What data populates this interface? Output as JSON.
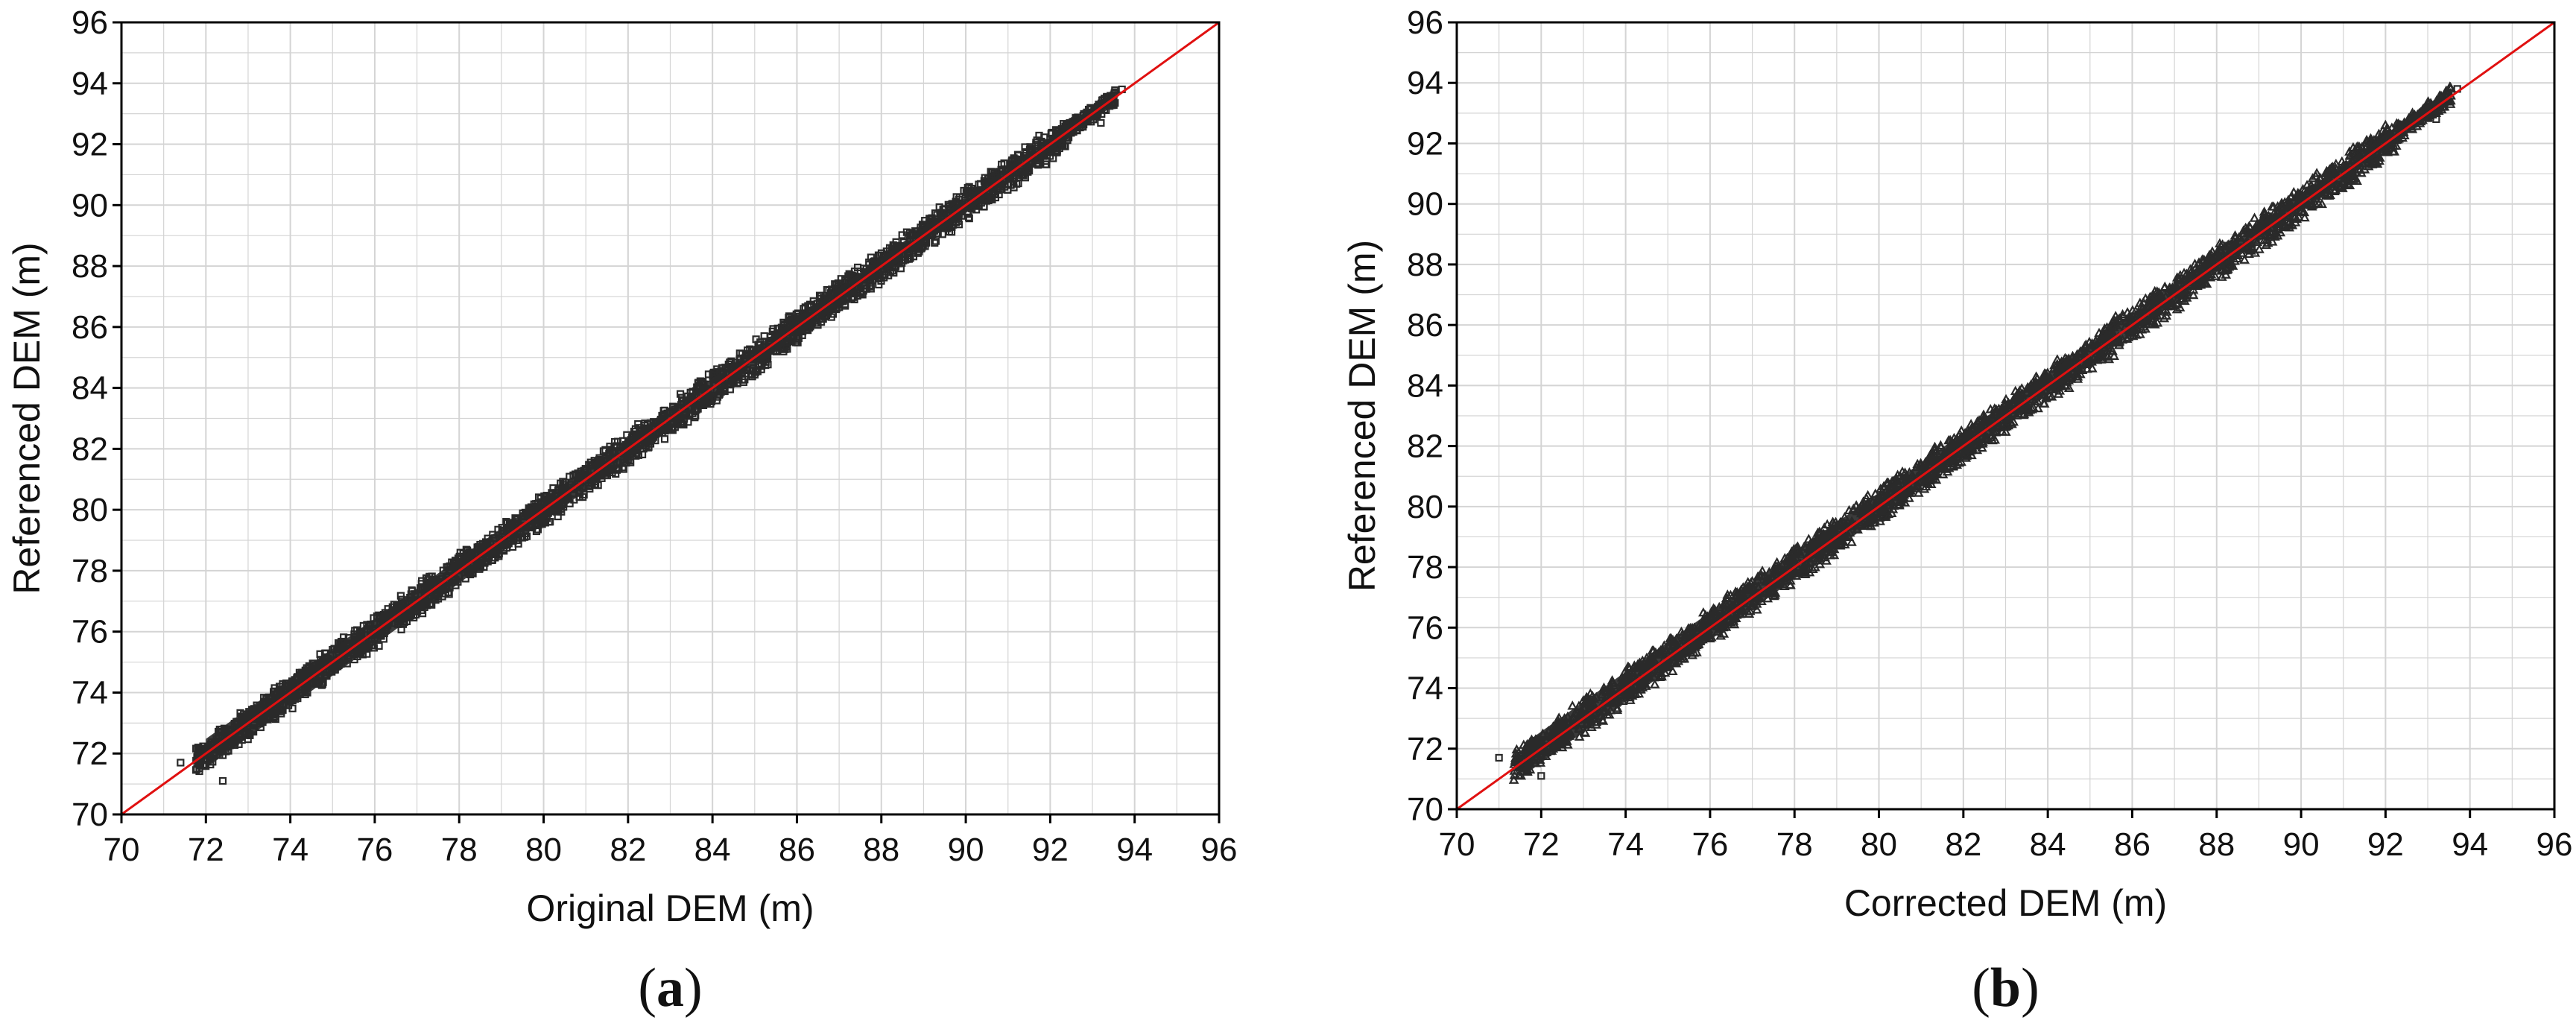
{
  "colors": {
    "points": "#2a2a2a",
    "fit_line": "#e01010",
    "grid": "#d4d4d4",
    "frame": "#000000"
  },
  "chart_data": [
    {
      "type": "scatter",
      "panel_label": "a",
      "xlabel": "Original DEM (m)",
      "ylabel": "Referenced DEM (m)",
      "xlim": [
        70,
        96
      ],
      "ylim": [
        70,
        96
      ],
      "x_ticks": [
        "70",
        "72",
        "74",
        "76",
        "78",
        "80",
        "82",
        "84",
        "86",
        "88",
        "90",
        "92",
        "94",
        "96"
      ],
      "y_ticks": [
        "70",
        "72",
        "74",
        "76",
        "78",
        "80",
        "82",
        "84",
        "86",
        "88",
        "90",
        "92",
        "94",
        "96"
      ],
      "grid": true,
      "grid_minor": true,
      "marker": "open-square",
      "reference_line": {
        "from": [
          70,
          70
        ],
        "to": [
          96,
          96
        ]
      },
      "point_cloud": {
        "x_range": [
          71.4,
          93.7
        ],
        "band_half_width": 0.6,
        "band_center_offset": 0.0,
        "extreme_points": [
          [
            71.4,
            71.7
          ],
          [
            72.4,
            71.1
          ],
          [
            93.7,
            93.8
          ],
          [
            93.2,
            92.7
          ]
        ]
      }
    },
    {
      "type": "scatter",
      "panel_label": "b",
      "xlabel": "Corrected DEM (m)",
      "ylabel": "Referenced DEM  (m)",
      "xlim": [
        70,
        96
      ],
      "ylim": [
        70,
        96
      ],
      "x_ticks": [
        "70",
        "72",
        "74",
        "76",
        "78",
        "80",
        "82",
        "84",
        "86",
        "88",
        "90",
        "92",
        "94",
        "96"
      ],
      "y_ticks": [
        "70",
        "72",
        "74",
        "76",
        "78",
        "80",
        "82",
        "84",
        "86",
        "88",
        "90",
        "92",
        "94",
        "96"
      ],
      "grid": true,
      "grid_minor": true,
      "marker": "open-triangle",
      "reference_line": {
        "from": [
          70,
          70
        ],
        "to": [
          96,
          96
        ]
      },
      "point_cloud": {
        "x_range": [
          71.0,
          93.7
        ],
        "band_half_width": 0.65,
        "band_center_offset": 0.05,
        "extreme_points": [
          [
            71.0,
            71.7
          ],
          [
            72.0,
            71.1
          ],
          [
            93.7,
            93.8
          ],
          [
            93.2,
            92.8
          ]
        ]
      }
    }
  ]
}
